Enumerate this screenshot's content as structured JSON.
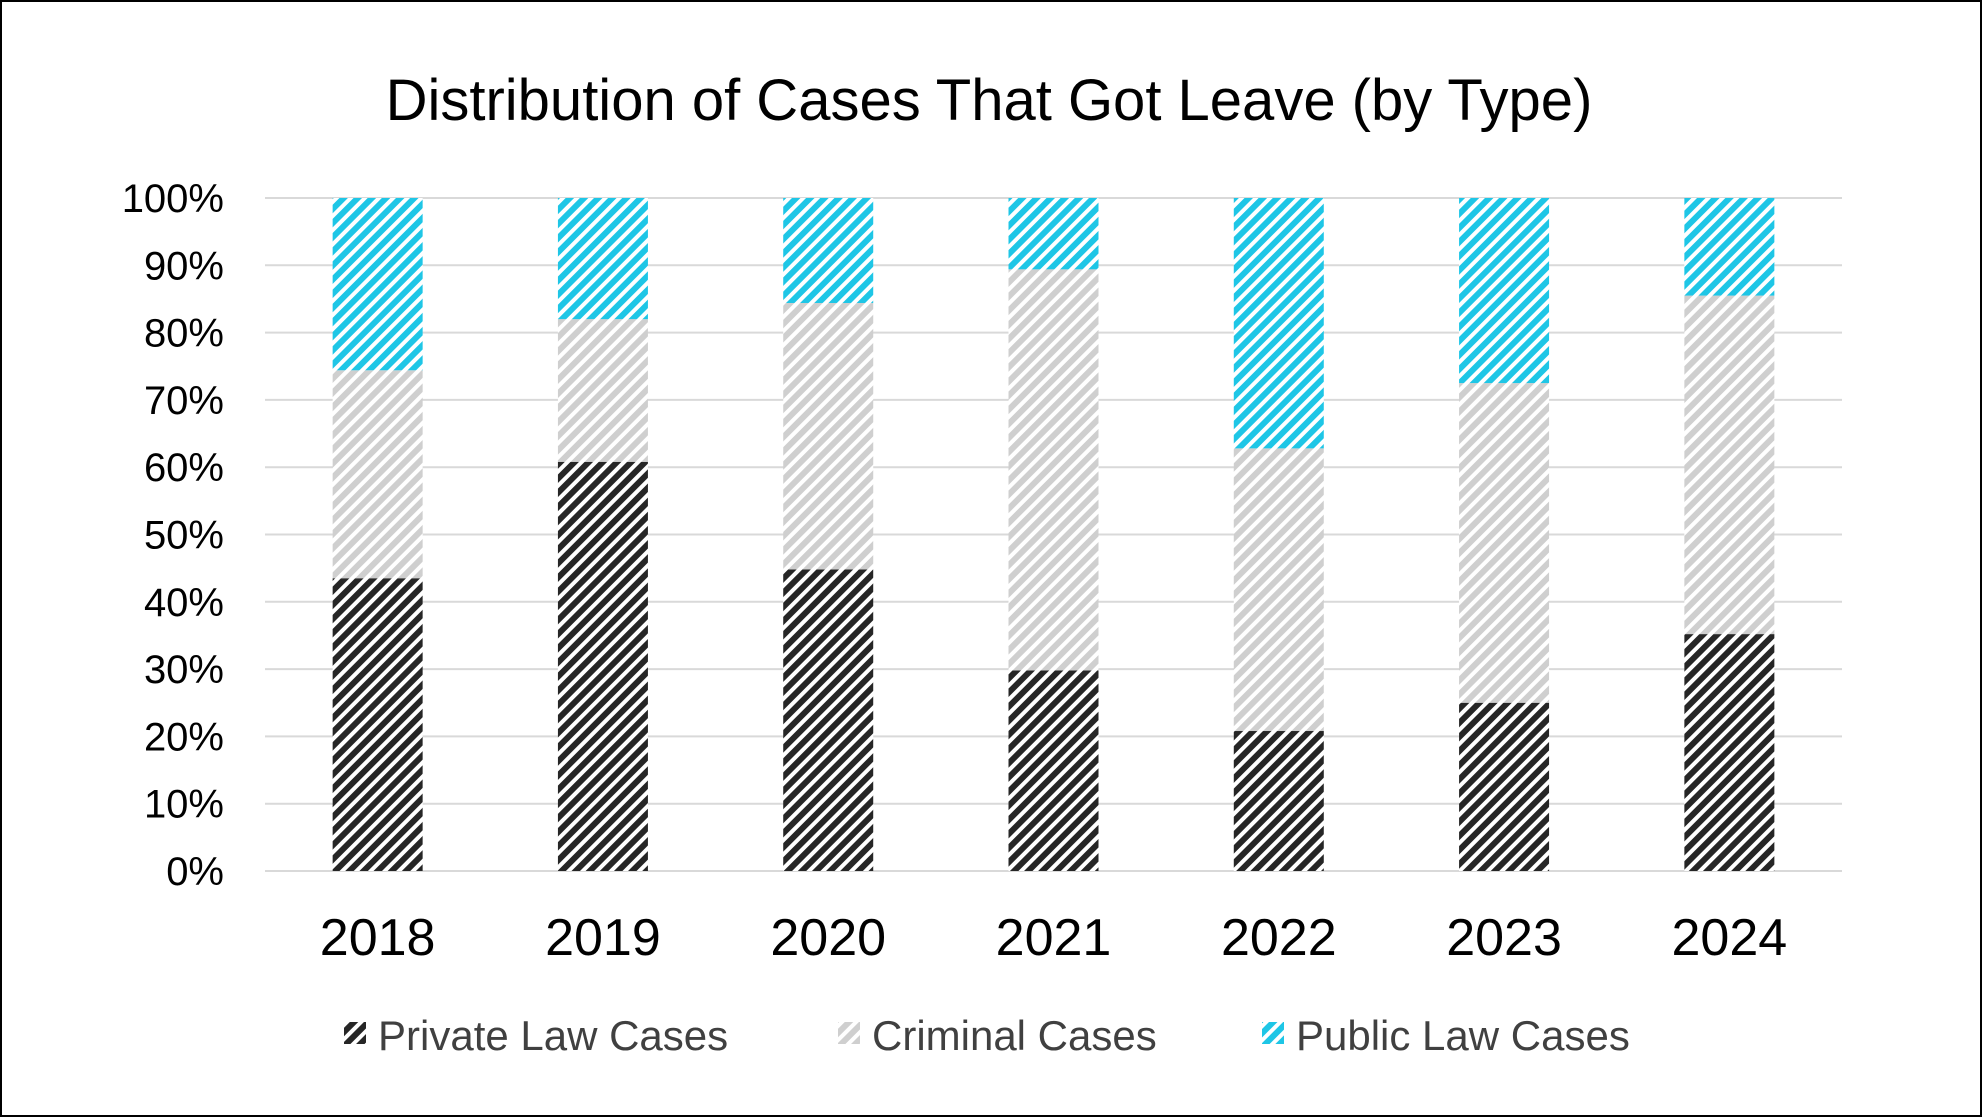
{
  "chart_data": {
    "type": "bar",
    "stacked": true,
    "title": "Distribution of Cases That Got Leave (by Type)",
    "categories": [
      "2018",
      "2019",
      "2020",
      "2021",
      "2022",
      "2023",
      "2024"
    ],
    "series": [
      {
        "name": "Private Law Cases",
        "values": [
          43.5,
          60.8,
          44.8,
          29.8,
          20.8,
          25.0,
          35.2
        ],
        "color": "#262626",
        "pattern": "black-diagonal-hatch"
      },
      {
        "name": "Criminal Cases",
        "values": [
          30.9,
          21.2,
          39.6,
          59.6,
          42.0,
          47.5,
          50.3
        ],
        "color": "#c8c8c8",
        "pattern": "gray-diagonal-hatch"
      },
      {
        "name": "Public Law Cases",
        "values": [
          25.6,
          18.0,
          15.6,
          10.6,
          37.2,
          27.5,
          14.5
        ],
        "color": "#1ec6e6",
        "pattern": "cyan-diagonal-hatch"
      }
    ],
    "yticks": [
      "0%",
      "10%",
      "20%",
      "30%",
      "40%",
      "50%",
      "60%",
      "70%",
      "80%",
      "90%",
      "100%"
    ],
    "ylim": [
      0,
      100
    ],
    "grid": true,
    "legend_position": "bottom"
  }
}
